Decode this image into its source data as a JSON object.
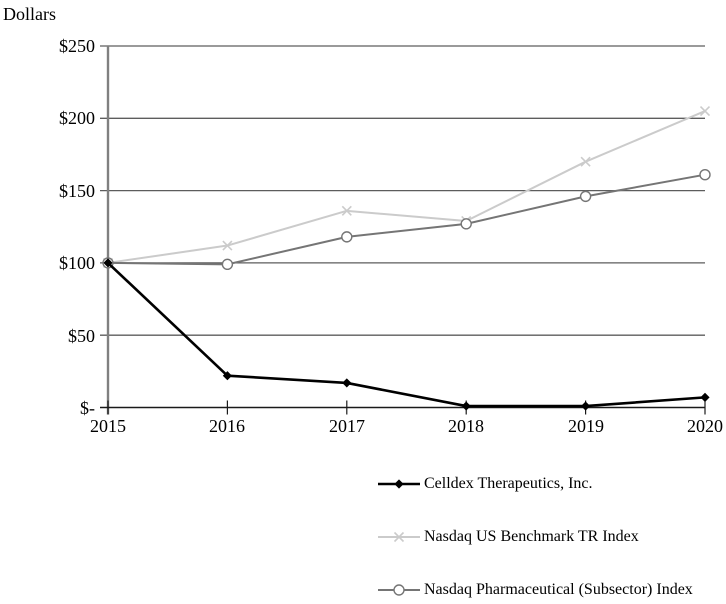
{
  "chart_data": {
    "type": "line",
    "title": "",
    "ylabel": "Dollars",
    "xlabel": "",
    "x_labels": [
      "2015",
      "2016",
      "2017",
      "2018",
      "2019",
      "2020"
    ],
    "ytick_labels_top_down": [
      "$250",
      "$200",
      "$150",
      "$100",
      "$50",
      "$-"
    ],
    "ylim": [
      0,
      250
    ],
    "ytick_step": 50,
    "grid": true,
    "legend_position": "bottom-right",
    "series": [
      {
        "name": "Celldex Therapeutics, Inc.",
        "marker": "diamond",
        "color": "#000000",
        "line_width": 2.6,
        "values": [
          100,
          22,
          17,
          1,
          1,
          7
        ]
      },
      {
        "name": "Nasdaq US Benchmark TR Index",
        "marker": "x",
        "color": "#cbcbcb",
        "line_width": 2,
        "values": [
          100,
          112,
          136,
          129,
          170,
          205
        ]
      },
      {
        "name": "Nasdaq Pharmaceutical (Subsector) Index",
        "marker": "circle-open",
        "color": "#757575",
        "line_width": 2,
        "values": [
          100,
          99,
          118,
          127,
          146,
          161
        ]
      }
    ],
    "colors": {
      "grid": "#5d5d5d",
      "x_axis": "#1a1a1a",
      "y_axis": "#808080",
      "text": "#000000",
      "background": "#ffffff"
    }
  }
}
